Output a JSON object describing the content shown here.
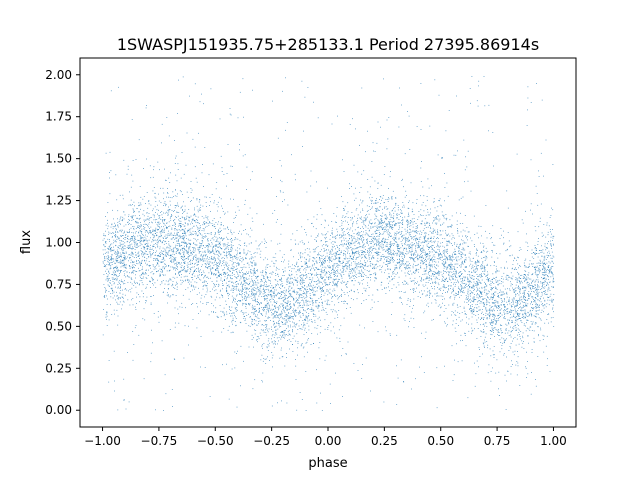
{
  "chart_data": {
    "type": "scatter",
    "title": "1SWASPJ151935.75+285133.1 Period 27395.86914s",
    "xlabel": "phase",
    "ylabel": "flux",
    "xlim": [
      -1.1,
      1.1
    ],
    "ylim": [
      -0.1,
      2.1
    ],
    "xticks": [
      -1.0,
      -0.75,
      -0.5,
      -0.25,
      0.0,
      0.25,
      0.5,
      0.75,
      1.0
    ],
    "xtick_labels": [
      "−1.00",
      "−0.75",
      "−0.50",
      "−0.25",
      "0.00",
      "0.25",
      "0.50",
      "0.75",
      "1.00"
    ],
    "yticks": [
      0.0,
      0.25,
      0.5,
      0.75,
      1.0,
      1.25,
      1.5,
      1.75,
      2.0
    ],
    "ytick_labels": [
      "0.00",
      "0.25",
      "0.50",
      "0.75",
      "1.00",
      "1.25",
      "1.50",
      "1.75",
      "2.00"
    ],
    "grid": false,
    "legend": "none",
    "series": [
      {
        "color": "#1f77b4",
        "marker": "point",
        "phase_range": [
          -1.0,
          1.0
        ],
        "mean_flux_curve": {
          "x": [
            -1.0,
            -0.9,
            -0.8,
            -0.75,
            -0.7,
            -0.6,
            -0.5,
            -0.4,
            -0.3,
            -0.25,
            -0.2,
            -0.1,
            0.0,
            0.1,
            0.2,
            0.25,
            0.3,
            0.4,
            0.5,
            0.6,
            0.7,
            0.75,
            0.8,
            0.9,
            1.0
          ],
          "y": [
            0.85,
            0.93,
            1.0,
            1.02,
            1.0,
            0.96,
            0.9,
            0.8,
            0.68,
            0.63,
            0.62,
            0.7,
            0.85,
            0.93,
            1.0,
            1.02,
            1.0,
            0.96,
            0.9,
            0.8,
            0.68,
            0.63,
            0.62,
            0.7,
            0.85
          ]
        },
        "typical_scatter": 0.15,
        "flux_extent": [
          0.0,
          2.0
        ]
      }
    ]
  }
}
